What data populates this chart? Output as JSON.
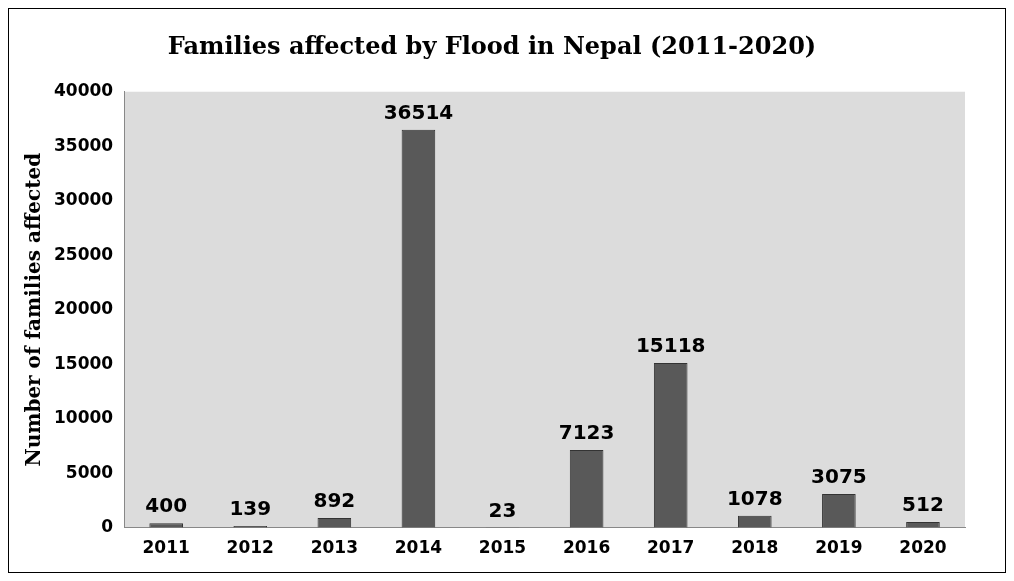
{
  "chart_data": {
    "type": "bar",
    "title": "Families affected by Flood in Nepal (2011-2020)",
    "ylabel": "Number of families affected",
    "categories": [
      "2011",
      "2012",
      "2013",
      "2014",
      "2015",
      "2016",
      "2017",
      "2018",
      "2019",
      "2020"
    ],
    "values": [
      400,
      139,
      892,
      36514,
      23,
      7123,
      15118,
      1078,
      3075,
      512
    ],
    "color": "#595959",
    "ylim": [
      0,
      40000
    ],
    "yticks": [
      0,
      5000,
      10000,
      15000,
      20000,
      25000,
      30000,
      35000,
      40000
    ],
    "grid": false,
    "legend": false,
    "data_labels": true
  }
}
